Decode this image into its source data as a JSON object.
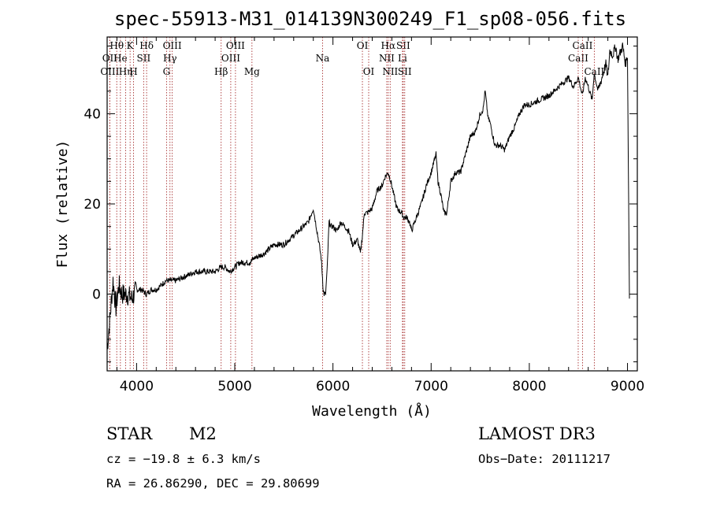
{
  "chart_data": {
    "type": "line",
    "title": "spec-55913-M31_014139N300249_F1_sp08-056.fits",
    "xlabel": "Wavelength (Å)",
    "ylabel": "Flux (relative)",
    "xlim": [
      3700,
      9100
    ],
    "ylim": [
      -17,
      57
    ],
    "xticks": [
      4000,
      5000,
      6000,
      7000,
      8000,
      9000
    ],
    "yticks": [
      0,
      20,
      40
    ],
    "series": [
      {
        "name": "spectrum",
        "x": [
          3700,
          3730,
          3760,
          3790,
          3820,
          3850,
          3900,
          3950,
          4000,
          4050,
          4100,
          4150,
          4200,
          4250,
          4300,
          4340,
          4400,
          4500,
          4600,
          4700,
          4800,
          4860,
          4900,
          4950,
          5000,
          5050,
          5100,
          5150,
          5200,
          5300,
          5400,
          5500,
          5600,
          5700,
          5750,
          5800,
          5830,
          5860,
          5880,
          5890,
          5900,
          5910,
          5925,
          5940,
          5960,
          5980,
          6000,
          6040,
          6080,
          6120,
          6160,
          6200,
          6250,
          6280,
          6300,
          6320,
          6350,
          6400,
          6450,
          6500,
          6530,
          6563,
          6590,
          6620,
          6650,
          6700,
          6720,
          6750,
          6780,
          6800,
          6850,
          6900,
          6950,
          7000,
          7050,
          7070,
          7100,
          7130,
          7160,
          7200,
          7250,
          7300,
          7350,
          7400,
          7450,
          7500,
          7530,
          7550,
          7580,
          7600,
          7650,
          7700,
          7750,
          7800,
          7850,
          7900,
          7950,
          8000,
          8100,
          8200,
          8300,
          8400,
          8450,
          8500,
          8540,
          8570,
          8600,
          8640,
          8660,
          8700,
          8740,
          8780,
          8800,
          8820,
          8850,
          8880,
          8900,
          8950,
          8980,
          9000,
          9020
        ],
        "y": [
          -12,
          -5,
          3,
          -3,
          2,
          0,
          0,
          -1,
          1,
          1,
          0,
          1,
          1,
          2,
          3,
          3,
          3,
          4,
          5,
          5,
          5,
          6,
          6,
          5,
          6,
          7,
          7,
          7,
          8,
          9,
          11,
          11,
          13,
          15,
          16,
          19,
          15,
          11,
          8,
          5,
          1,
          0,
          0,
          5,
          16,
          15,
          15,
          14,
          16,
          15,
          14,
          11,
          12,
          9,
          13,
          18,
          18,
          19,
          23,
          24,
          26,
          27,
          25,
          22,
          19,
          18,
          17,
          17,
          16,
          14,
          17,
          20,
          24,
          27,
          31,
          25,
          22,
          18,
          18,
          25,
          27,
          27,
          31,
          35,
          36,
          40,
          41,
          45,
          39,
          38,
          33,
          33,
          32,
          35,
          37,
          40,
          42,
          42,
          43,
          44,
          46,
          48,
          46,
          48,
          44,
          48,
          46,
          43,
          49,
          45,
          48,
          51,
          48,
          54,
          53,
          55,
          52,
          55,
          51,
          53,
          -1
        ]
      }
    ],
    "line_markers": [
      {
        "name": "OII",
        "x": 3727,
        "row": 1
      },
      {
        "name": "OIII",
        "x": 3727,
        "row": 2
      },
      {
        "name": "Hθ",
        "x": 3798,
        "row": 0
      },
      {
        "name": "He",
        "x": 3835,
        "row": 1
      },
      {
        "name": "Hη",
        "x": 3889,
        "row": 2
      },
      {
        "name": "K",
        "x": 3934,
        "row": 0
      },
      {
        "name": "H",
        "x": 3969,
        "row": 2
      },
      {
        "name": "SII",
        "x": 4072,
        "row": 1
      },
      {
        "name": "Hδ",
        "x": 4102,
        "row": 0
      },
      {
        "name": "G",
        "x": 4305,
        "row": 2
      },
      {
        "name": "Hγ",
        "x": 4340,
        "row": 1
      },
      {
        "name": "OIII",
        "x": 4363,
        "row": 0
      },
      {
        "name": "Hβ",
        "x": 4861,
        "row": 2
      },
      {
        "name": "OIII",
        "x": 4959,
        "row": 1
      },
      {
        "name": "OIII",
        "x": 5007,
        "row": 0
      },
      {
        "name": "Mg",
        "x": 5175,
        "row": 2
      },
      {
        "name": "Na",
        "x": 5894,
        "row": 1
      },
      {
        "name": "OI",
        "x": 6300,
        "row": 0
      },
      {
        "name": "OI",
        "x": 6364,
        "row": 2
      },
      {
        "name": "NII",
        "x": 6548,
        "row": 1
      },
      {
        "name": "Hα",
        "x": 6563,
        "row": 0
      },
      {
        "name": "NII",
        "x": 6583,
        "row": 2
      },
      {
        "name": "Li",
        "x": 6708,
        "row": 1
      },
      {
        "name": "SII",
        "x": 6716,
        "row": 0
      },
      {
        "name": "SII",
        "x": 6731,
        "row": 2
      },
      {
        "name": "CaII",
        "x": 8498,
        "row": 1
      },
      {
        "name": "CaII",
        "x": 8542,
        "row": 0
      },
      {
        "name": "CaII",
        "x": 8662,
        "row": 2
      }
    ]
  },
  "info": {
    "class": "STAR",
    "subclass": "M2",
    "survey": "LAMOST DR3",
    "cz": "cz = −19.8 ± 6.3 km/s",
    "obs_date": "Obs−Date: 20111217",
    "radec": "RA =  26.86290, DEC =  29.80699"
  }
}
